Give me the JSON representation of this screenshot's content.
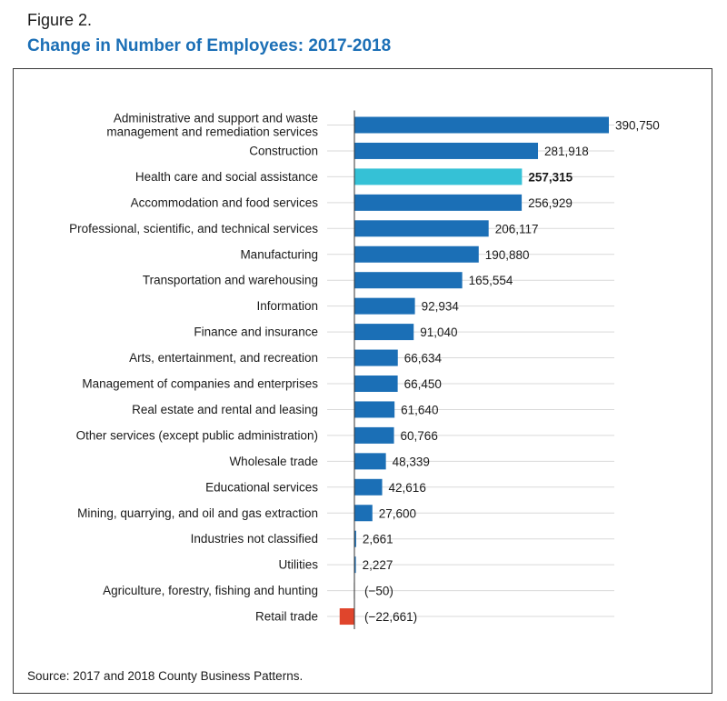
{
  "figure_label": "Figure 2.",
  "title": "Change in Number of Employees: 2017-2018",
  "source": "Source: 2017 and 2018 County Business Patterns.",
  "colors": {
    "positive": "#1b6fb6",
    "highlight": "#35c1d6",
    "negative": "#e0452c",
    "title": "#1b6fb6"
  },
  "chart_data": {
    "type": "bar",
    "orientation": "horizontal",
    "categories": [
      [
        "Administrative and support and waste",
        "management and remediation services"
      ],
      [
        "Construction"
      ],
      [
        "Health care and social assistance"
      ],
      [
        "Accommodation and food services"
      ],
      [
        "Professional, scientific, and technical services"
      ],
      [
        "Manufacturing"
      ],
      [
        "Transportation and warehousing"
      ],
      [
        "Information"
      ],
      [
        "Finance and insurance"
      ],
      [
        "Arts, entertainment, and recreation"
      ],
      [
        "Management of companies and enterprises"
      ],
      [
        "Real estate and rental and leasing"
      ],
      [
        "Other services (except public administration)"
      ],
      [
        "Wholesale trade"
      ],
      [
        "Educational services"
      ],
      [
        "Mining, quarrying, and oil and gas extraction"
      ],
      [
        "Industries not classified"
      ],
      [
        "Utilities"
      ],
      [
        "Agriculture, forestry, fishing and hunting"
      ],
      [
        "Retail trade"
      ]
    ],
    "values": [
      390750,
      281918,
      257315,
      256929,
      206117,
      190880,
      165554,
      92934,
      91040,
      66634,
      66450,
      61640,
      60766,
      48339,
      42616,
      27600,
      2661,
      2227,
      -50,
      -22661
    ],
    "value_labels": [
      "390,750",
      "281,918",
      "257,315",
      "256,929",
      "206,117",
      "190,880",
      "165,554",
      "92,934",
      "91,040",
      "66,634",
      "66,450",
      "61,640",
      "60,766",
      "48,339",
      "42,616",
      "27,600",
      "2,661",
      "2,227",
      "(−50)",
      "(−22,661)"
    ],
    "highlight_index": 2,
    "grid": true,
    "xlim": [
      -22661,
      390750
    ]
  }
}
